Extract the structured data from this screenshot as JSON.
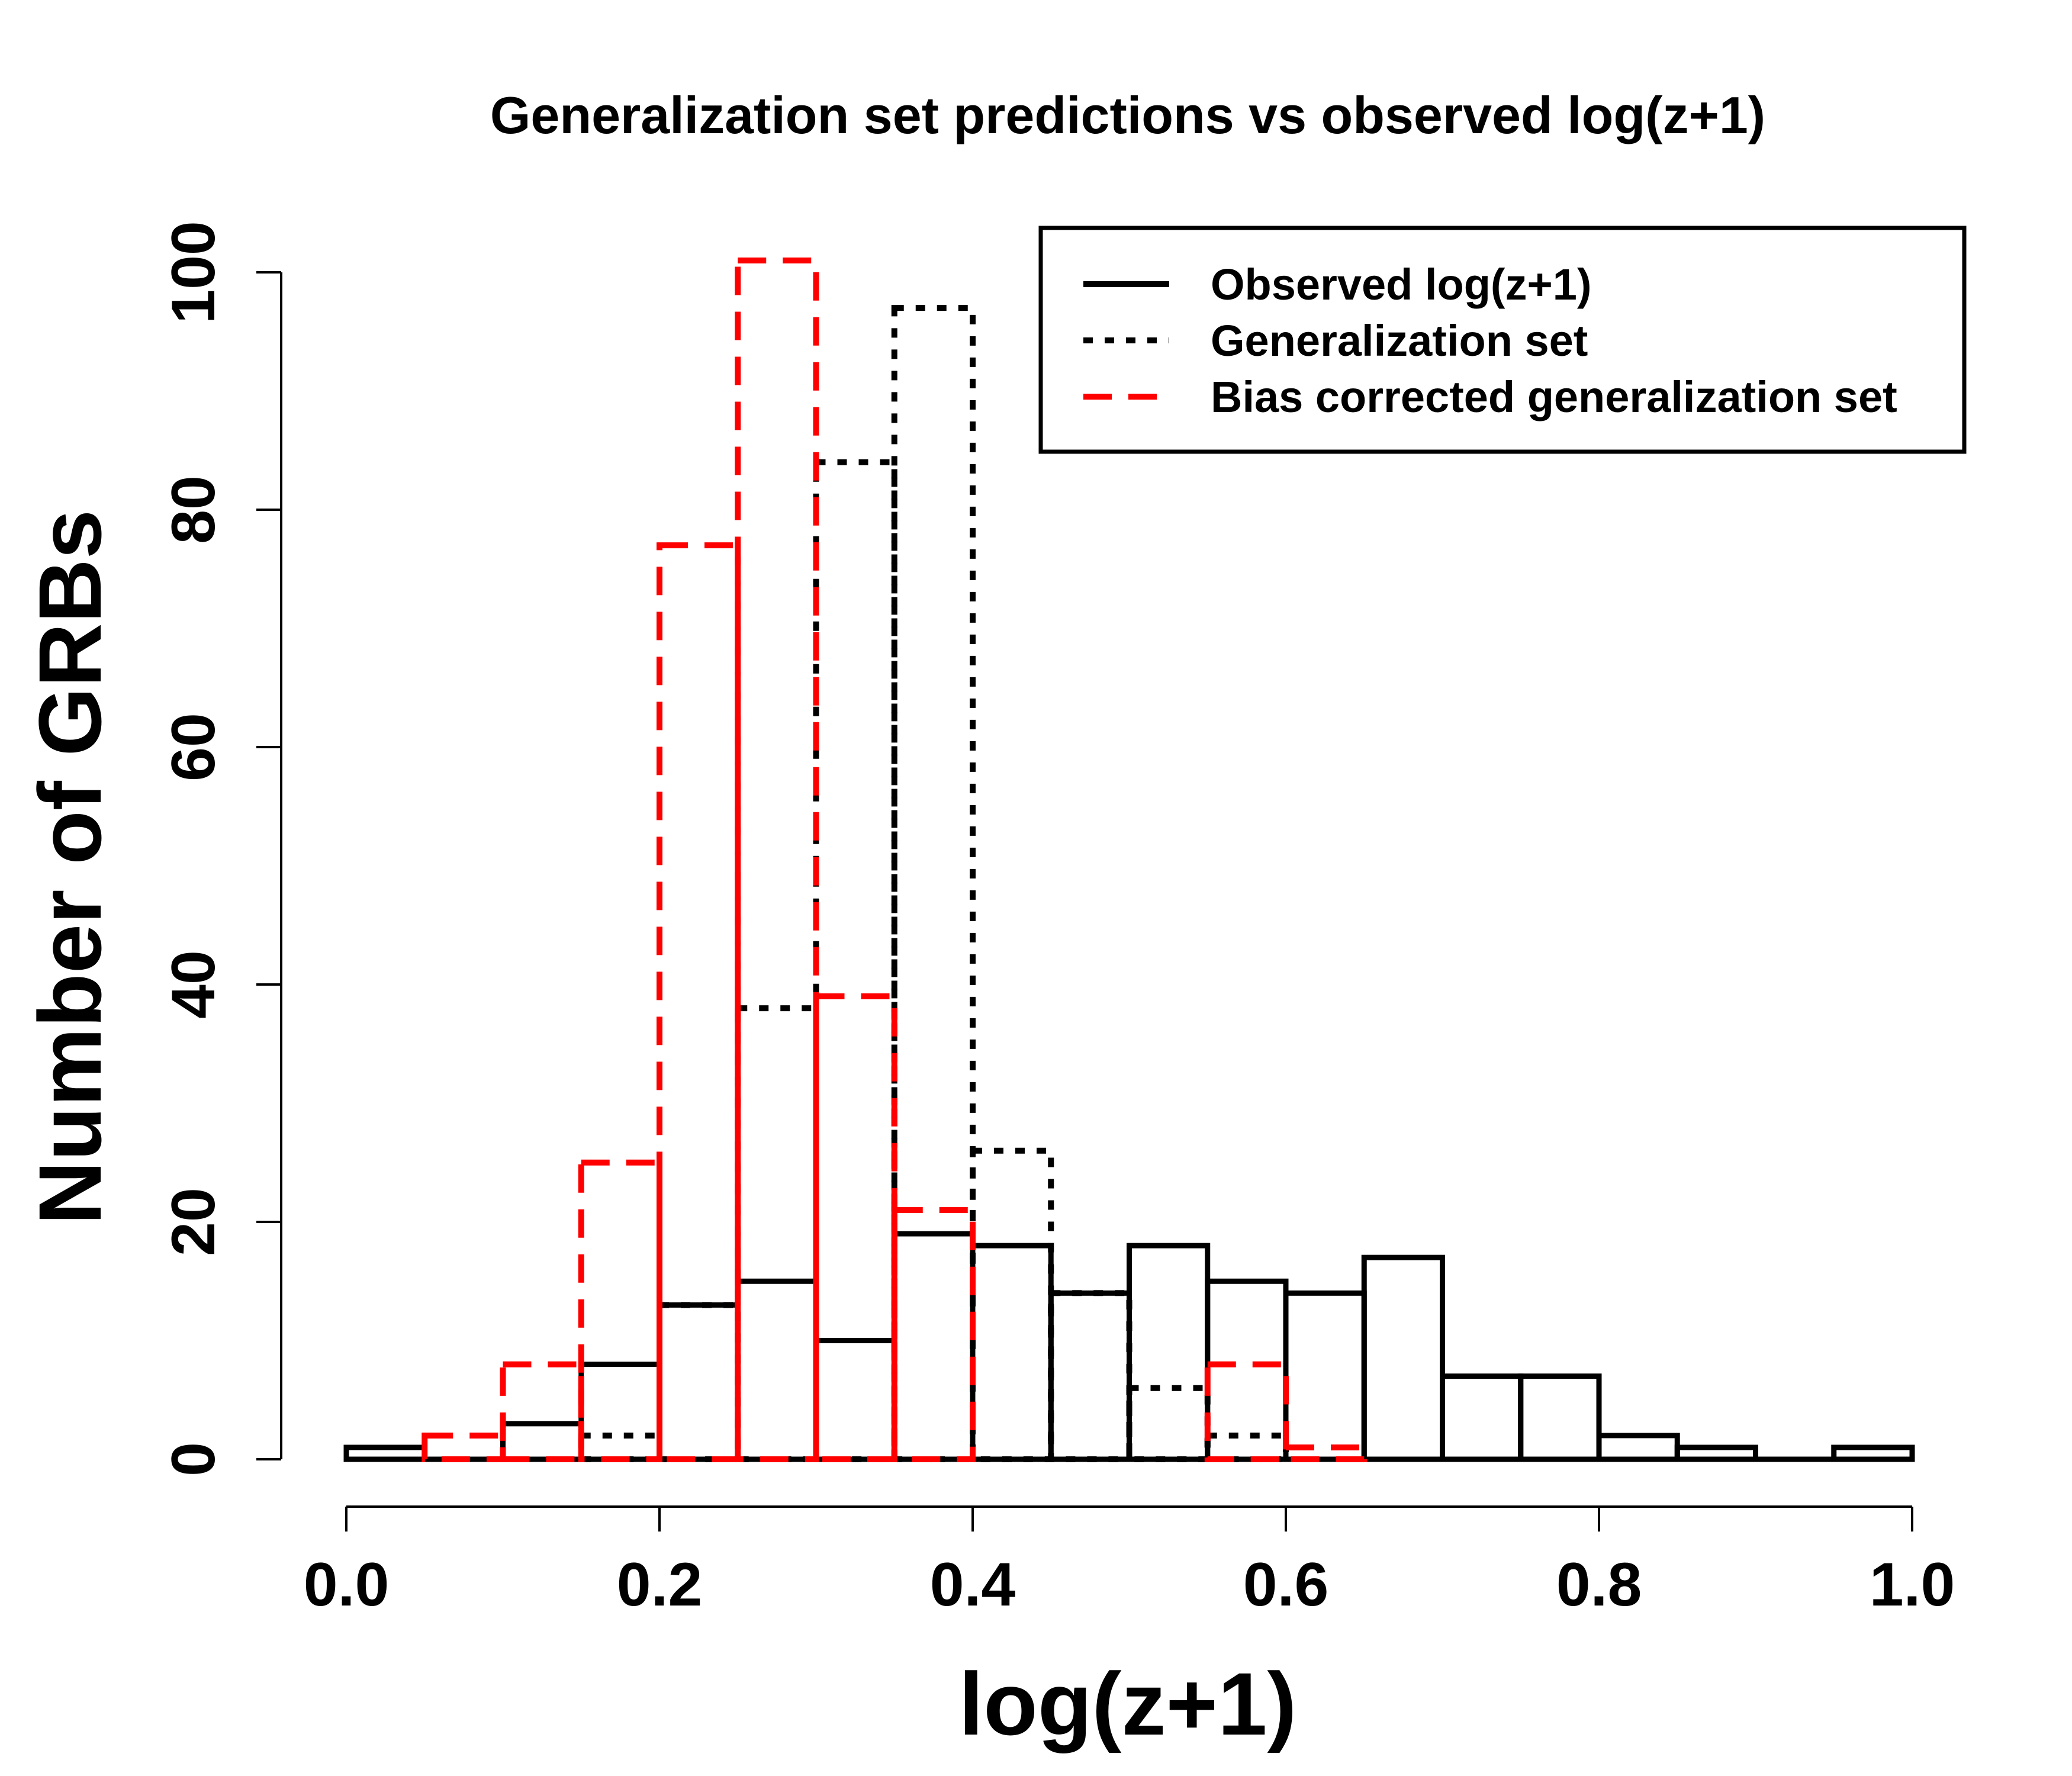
{
  "chart_data": {
    "type": "bar",
    "title": "Generalization set predictions vs observed log(z+1)",
    "xlabel": "log(z+1)",
    "ylabel": "Number of GRBs",
    "xlim": [
      0.0,
      1.0
    ],
    "ylim": [
      0,
      100
    ],
    "x_ticks": [
      "0.0",
      "0.2",
      "0.4",
      "0.6",
      "0.8",
      "1.0"
    ],
    "y_ticks": [
      "0",
      "20",
      "40",
      "60",
      "80",
      "100"
    ],
    "bin_edges": [
      0.0,
      0.05,
      0.1,
      0.15,
      0.2,
      0.25,
      0.3,
      0.35,
      0.4,
      0.45,
      0.5,
      0.55,
      0.6,
      0.65,
      0.7,
      0.75,
      0.8,
      0.85,
      0.9,
      0.95,
      1.0
    ],
    "grid": false,
    "legend_position": "top-right",
    "series": [
      {
        "name": "Observed log(z+1)",
        "line": "solid",
        "color": "#000000",
        "values": [
          1,
          0,
          3,
          8,
          13,
          15,
          10,
          19,
          18,
          14,
          18,
          15,
          14,
          17,
          7,
          7,
          2,
          1,
          0,
          1
        ]
      },
      {
        "name": "Generalization set",
        "line": "dotted",
        "color": "#000000",
        "values": [
          0,
          0,
          0,
          2,
          13,
          38,
          84,
          97,
          26,
          14,
          6,
          2,
          0,
          0,
          0,
          0,
          0,
          0,
          0,
          0
        ]
      },
      {
        "name": "Bias corrected generalization set",
        "line": "dashed",
        "color": "#ff0000",
        "values": [
          0,
          2,
          8,
          25,
          77,
          101,
          39,
          21,
          0,
          0,
          0,
          8,
          1,
          0,
          0,
          0,
          0,
          0,
          0,
          0
        ]
      }
    ]
  }
}
